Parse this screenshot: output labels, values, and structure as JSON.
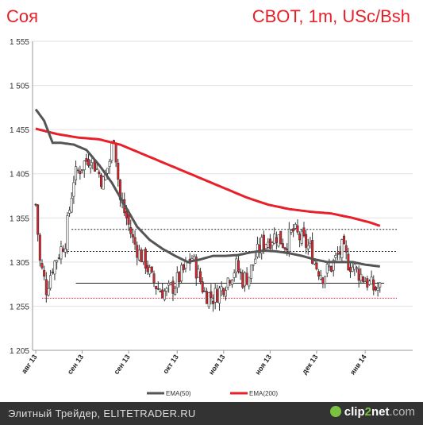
{
  "header": {
    "instrument": "Соя",
    "info": "CBOT, 1m, USc/Bsh"
  },
  "footer": {
    "caption": "Элитный Трейдер, ELITETRADER.RU",
    "wm_a": "clip",
    "wm_b": "2",
    "wm_c": "net",
    "wm_d": ".com"
  },
  "chart_data": {
    "type": "candlestick",
    "ylim": [
      1205,
      1555
    ],
    "yticks": [
      "1 555",
      "1 505",
      "1 455",
      "1 405",
      "1 355",
      "1 305",
      "1 255",
      "1 205"
    ],
    "ytick_values": [
      1555,
      1505,
      1455,
      1405,
      1355,
      1305,
      1255,
      1205
    ],
    "x_labels": [
      "авг 13",
      "сен 13",
      "сен 13",
      "окт 13",
      "ноя 13",
      "ноя 13",
      "дек 13",
      "янв 14"
    ],
    "x_label_index": [
      0,
      22,
      44,
      67,
      89,
      111,
      133,
      156
    ],
    "n_bars": 180,
    "colors": {
      "up": "#ffffff",
      "down": "#e8202a",
      "ema50": "#555555",
      "ema200": "#e8202a",
      "grid": "#e2e2e2"
    },
    "legend": [
      {
        "name": "EMA(50)",
        "color": "#555555"
      },
      {
        "name": "EMA(200)",
        "color": "#e8202a"
      }
    ],
    "close_anchors": [
      [
        0,
        1370
      ],
      [
        2,
        1305
      ],
      [
        5,
        1275
      ],
      [
        8,
        1300
      ],
      [
        11,
        1315
      ],
      [
        14,
        1330
      ],
      [
        18,
        1400
      ],
      [
        22,
        1415
      ],
      [
        26,
        1425
      ],
      [
        29,
        1410
      ],
      [
        32,
        1395
      ],
      [
        35,
        1420
      ],
      [
        37,
        1450
      ],
      [
        40,
        1375
      ],
      [
        43,
        1355
      ],
      [
        46,
        1330
      ],
      [
        49,
        1315
      ],
      [
        52,
        1305
      ],
      [
        55,
        1285
      ],
      [
        58,
        1275
      ],
      [
        62,
        1270
      ],
      [
        66,
        1280
      ],
      [
        70,
        1295
      ],
      [
        74,
        1310
      ],
      [
        77,
        1290
      ],
      [
        80,
        1270
      ],
      [
        84,
        1265
      ],
      [
        88,
        1275
      ],
      [
        92,
        1290
      ],
      [
        95,
        1300
      ],
      [
        98,
        1285
      ],
      [
        101,
        1290
      ],
      [
        104,
        1310
      ],
      [
        107,
        1325
      ],
      [
        110,
        1330
      ],
      [
        114,
        1335
      ],
      [
        118,
        1325
      ],
      [
        122,
        1340
      ],
      [
        126,
        1330
      ],
      [
        130,
        1320
      ],
      [
        133,
        1300
      ],
      [
        136,
        1290
      ],
      [
        140,
        1300
      ],
      [
        145,
        1320
      ],
      [
        148,
        1305
      ],
      [
        152,
        1295
      ],
      [
        156,
        1285
      ],
      [
        160,
        1275
      ],
      [
        163,
        1275
      ]
    ],
    "ema50_anchors": [
      [
        0,
        1478
      ],
      [
        4,
        1465
      ],
      [
        8,
        1440
      ],
      [
        12,
        1440
      ],
      [
        18,
        1438
      ],
      [
        24,
        1432
      ],
      [
        30,
        1415
      ],
      [
        36,
        1395
      ],
      [
        42,
        1370
      ],
      [
        48,
        1345
      ],
      [
        54,
        1330
      ],
      [
        60,
        1320
      ],
      [
        66,
        1312
      ],
      [
        72,
        1305
      ],
      [
        78,
        1308
      ],
      [
        84,
        1312
      ],
      [
        90,
        1312
      ],
      [
        96,
        1313
      ],
      [
        102,
        1316
      ],
      [
        108,
        1318
      ],
      [
        114,
        1317
      ],
      [
        120,
        1315
      ],
      [
        126,
        1312
      ],
      [
        132,
        1308
      ],
      [
        138,
        1305
      ],
      [
        144,
        1305
      ],
      [
        150,
        1305
      ],
      [
        156,
        1302
      ],
      [
        163,
        1300
      ]
    ],
    "ema200_anchors": [
      [
        0,
        1456
      ],
      [
        10,
        1450
      ],
      [
        20,
        1446
      ],
      [
        30,
        1444
      ],
      [
        40,
        1438
      ],
      [
        50,
        1428
      ],
      [
        60,
        1418
      ],
      [
        70,
        1408
      ],
      [
        80,
        1398
      ],
      [
        90,
        1388
      ],
      [
        100,
        1378
      ],
      [
        110,
        1370
      ],
      [
        120,
        1365
      ],
      [
        130,
        1362
      ],
      [
        140,
        1360
      ],
      [
        150,
        1355
      ],
      [
        158,
        1350
      ],
      [
        163,
        1346
      ]
    ],
    "hlines": [
      {
        "y": 1342,
        "from": 17,
        "to": 180,
        "color": "#222222",
        "dash": "2,2"
      },
      {
        "y": 1317,
        "from": 12,
        "to": 180,
        "color": "#222222",
        "dash": "2,2"
      },
      {
        "y": 1281,
        "from": 19,
        "to": 165,
        "color": "#222222",
        "dash": ""
      },
      {
        "y": 1264,
        "from": 3,
        "to": 180,
        "color": "#e8202a",
        "dash": "1,1"
      }
    ]
  }
}
